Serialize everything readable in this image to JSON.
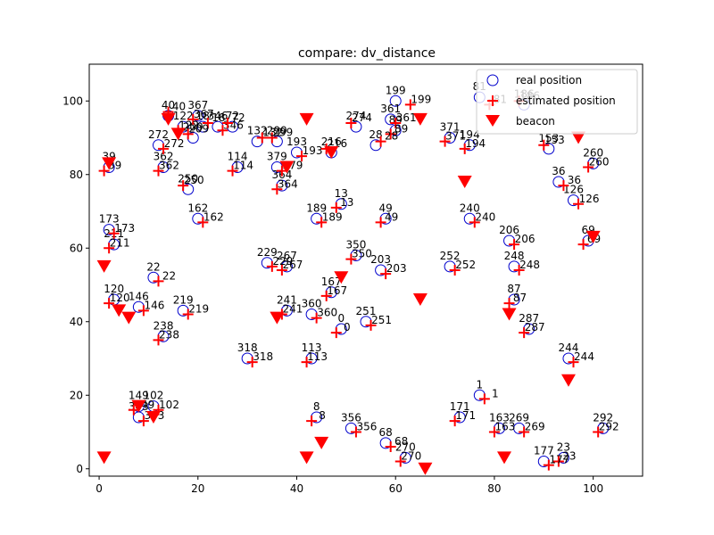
{
  "chart_data": {
    "type": "scatter",
    "title": "compare: dv_distance",
    "xlabel": "",
    "ylabel": "",
    "xlim": [
      -2,
      110
    ],
    "ylim": [
      -2,
      110
    ],
    "x_ticks": [
      0,
      20,
      40,
      60,
      80,
      100
    ],
    "y_ticks": [
      0,
      20,
      40,
      60,
      80,
      100
    ],
    "grid": false,
    "legend_position": "top-right",
    "colors": {
      "real": "#0000cc",
      "estimated": "#ff0000",
      "beacon": "#ff0000"
    },
    "series": [
      {
        "name": "real position",
        "marker": "open-circle",
        "points": [
          {
            "id": "199",
            "x": 60,
            "y": 100
          },
          {
            "id": "367",
            "x": 20,
            "y": 96
          },
          {
            "id": "40",
            "x": 14,
            "y": 96
          },
          {
            "id": "122",
            "x": 17,
            "y": 93
          },
          {
            "id": "18",
            "x": 21,
            "y": 93
          },
          {
            "id": "346",
            "x": 24,
            "y": 93
          },
          {
            "id": "72",
            "x": 27,
            "y": 93
          },
          {
            "id": "299",
            "x": 36,
            "y": 89
          },
          {
            "id": "132",
            "x": 32,
            "y": 89
          },
          {
            "id": "274",
            "x": 52,
            "y": 93
          },
          {
            "id": "361",
            "x": 59,
            "y": 95
          },
          {
            "id": "89",
            "x": 60,
            "y": 92
          },
          {
            "id": "28",
            "x": 56,
            "y": 88
          },
          {
            "id": "194",
            "x": 75,
            "y": 88
          },
          {
            "id": "371",
            "x": 71,
            "y": 90
          },
          {
            "id": "81",
            "x": 77,
            "y": 101
          },
          {
            "id": "186",
            "x": 86,
            "y": 99
          },
          {
            "id": "153",
            "x": 91,
            "y": 87
          },
          {
            "id": "272",
            "x": 12,
            "y": 88
          },
          {
            "id": "209",
            "x": 19,
            "y": 90
          },
          {
            "id": "193",
            "x": 40,
            "y": 86
          },
          {
            "id": "216",
            "x": 47,
            "y": 86
          },
          {
            "id": "36",
            "x": 93,
            "y": 78
          },
          {
            "id": "260",
            "x": 100,
            "y": 83
          },
          {
            "id": "126",
            "x": 96,
            "y": 73
          },
          {
            "id": "173",
            "x": 2,
            "y": 65
          },
          {
            "id": "39",
            "x": 2,
            "y": 82
          },
          {
            "id": "362",
            "x": 13,
            "y": 82
          },
          {
            "id": "250",
            "x": 18,
            "y": 76
          },
          {
            "id": "162",
            "x": 20,
            "y": 68
          },
          {
            "id": "114",
            "x": 28,
            "y": 82
          },
          {
            "id": "379",
            "x": 36,
            "y": 82
          },
          {
            "id": "364",
            "x": 37,
            "y": 77
          },
          {
            "id": "189",
            "x": 44,
            "y": 68
          },
          {
            "id": "13",
            "x": 49,
            "y": 72
          },
          {
            "id": "49",
            "x": 58,
            "y": 68
          },
          {
            "id": "240",
            "x": 75,
            "y": 68
          },
          {
            "id": "206",
            "x": 83,
            "y": 62
          },
          {
            "id": "69",
            "x": 99,
            "y": 62
          },
          {
            "id": "350",
            "x": 52,
            "y": 58
          },
          {
            "id": "203",
            "x": 57,
            "y": 54
          },
          {
            "id": "252",
            "x": 71,
            "y": 55
          },
          {
            "id": "248",
            "x": 84,
            "y": 55
          },
          {
            "id": "211",
            "x": 3,
            "y": 61
          },
          {
            "id": "22",
            "x": 11,
            "y": 52
          },
          {
            "id": "229",
            "x": 34,
            "y": 56
          },
          {
            "id": "267",
            "x": 38,
            "y": 55
          },
          {
            "id": "167",
            "x": 47,
            "y": 48
          },
          {
            "id": "120",
            "x": 3,
            "y": 46
          },
          {
            "id": "146",
            "x": 8,
            "y": 44
          },
          {
            "id": "219",
            "x": 17,
            "y": 43
          },
          {
            "id": "241",
            "x": 38,
            "y": 43
          },
          {
            "id": "360",
            "x": 43,
            "y": 42
          },
          {
            "id": "87",
            "x": 84,
            "y": 46
          },
          {
            "id": "287",
            "x": 87,
            "y": 38
          },
          {
            "id": "238",
            "x": 13,
            "y": 36
          },
          {
            "id": "0",
            "x": 49,
            "y": 38
          },
          {
            "id": "251",
            "x": 54,
            "y": 40
          },
          {
            "id": "318",
            "x": 30,
            "y": 30
          },
          {
            "id": "113",
            "x": 43,
            "y": 30
          },
          {
            "id": "1",
            "x": 77,
            "y": 20
          },
          {
            "id": "244",
            "x": 95,
            "y": 30
          },
          {
            "id": "102",
            "x": 11,
            "y": 17
          },
          {
            "id": "149",
            "x": 8,
            "y": 17
          },
          {
            "id": "373",
            "x": 8,
            "y": 14
          },
          {
            "id": "8",
            "x": 44,
            "y": 14
          },
          {
            "id": "356",
            "x": 51,
            "y": 11
          },
          {
            "id": "68",
            "x": 58,
            "y": 7
          },
          {
            "id": "171",
            "x": 73,
            "y": 14
          },
          {
            "id": "163",
            "x": 81,
            "y": 11
          },
          {
            "id": "269",
            "x": 85,
            "y": 11
          },
          {
            "id": "292",
            "x": 102,
            "y": 11
          },
          {
            "id": "23",
            "x": 94,
            "y": 3
          },
          {
            "id": "177",
            "x": 90,
            "y": 2
          },
          {
            "id": "270",
            "x": 62,
            "y": 3
          }
        ]
      },
      {
        "name": "estimated position",
        "marker": "plus",
        "points": [
          {
            "id": "199",
            "x": 63,
            "y": 99
          },
          {
            "id": "367",
            "x": 19,
            "y": 95
          },
          {
            "id": "40",
            "x": 14,
            "y": 97
          },
          {
            "id": "122",
            "x": 16,
            "y": 92
          },
          {
            "id": "18",
            "x": 22,
            "y": 94
          },
          {
            "id": "346",
            "x": 25,
            "y": 92
          },
          {
            "id": "72",
            "x": 26,
            "y": 94
          },
          {
            "id": "299",
            "x": 35,
            "y": 90
          },
          {
            "id": "132",
            "x": 33,
            "y": 90
          },
          {
            "id": "274",
            "x": 51,
            "y": 94
          },
          {
            "id": "361",
            "x": 60,
            "y": 94
          },
          {
            "id": "89",
            "x": 59,
            "y": 91
          },
          {
            "id": "28",
            "x": 57,
            "y": 89
          },
          {
            "id": "194",
            "x": 74,
            "y": 87
          },
          {
            "id": "371",
            "x": 70,
            "y": 89
          },
          {
            "id": "81",
            "x": 79,
            "y": 99
          },
          {
            "id": "186",
            "x": 85,
            "y": 100
          },
          {
            "id": "153",
            "x": 90,
            "y": 88
          },
          {
            "id": "272",
            "x": 13,
            "y": 87
          },
          {
            "id": "209",
            "x": 18,
            "y": 91
          },
          {
            "id": "193",
            "x": 41,
            "y": 85
          },
          {
            "id": "216",
            "x": 46,
            "y": 87
          },
          {
            "id": "36",
            "x": 94,
            "y": 77
          },
          {
            "id": "260",
            "x": 99,
            "y": 82
          },
          {
            "id": "126",
            "x": 97,
            "y": 72
          },
          {
            "id": "173",
            "x": 3,
            "y": 64
          },
          {
            "id": "39",
            "x": 1,
            "y": 81
          },
          {
            "id": "362",
            "x": 12,
            "y": 81
          },
          {
            "id": "250",
            "x": 17,
            "y": 77
          },
          {
            "id": "162",
            "x": 21,
            "y": 67
          },
          {
            "id": "114",
            "x": 27,
            "y": 81
          },
          {
            "id": "379",
            "x": 37,
            "y": 81
          },
          {
            "id": "364",
            "x": 36,
            "y": 76
          },
          {
            "id": "189",
            "x": 45,
            "y": 67
          },
          {
            "id": "13",
            "x": 48,
            "y": 71
          },
          {
            "id": "49",
            "x": 57,
            "y": 67
          },
          {
            "id": "240",
            "x": 76,
            "y": 67
          },
          {
            "id": "206",
            "x": 84,
            "y": 61
          },
          {
            "id": "69",
            "x": 98,
            "y": 61
          },
          {
            "id": "350",
            "x": 51,
            "y": 57
          },
          {
            "id": "203",
            "x": 58,
            "y": 53
          },
          {
            "id": "252",
            "x": 72,
            "y": 54
          },
          {
            "id": "248",
            "x": 85,
            "y": 54
          },
          {
            "id": "211",
            "x": 2,
            "y": 60
          },
          {
            "id": "22",
            "x": 12,
            "y": 51
          },
          {
            "id": "229",
            "x": 35,
            "y": 55
          },
          {
            "id": "267",
            "x": 37,
            "y": 54
          },
          {
            "id": "167",
            "x": 46,
            "y": 47
          },
          {
            "id": "120",
            "x": 2,
            "y": 45
          },
          {
            "id": "146",
            "x": 9,
            "y": 43
          },
          {
            "id": "219",
            "x": 18,
            "y": 42
          },
          {
            "id": "241",
            "x": 37,
            "y": 42
          },
          {
            "id": "360",
            "x": 44,
            "y": 41
          },
          {
            "id": "87",
            "x": 83,
            "y": 45
          },
          {
            "id": "287",
            "x": 86,
            "y": 37
          },
          {
            "id": "238",
            "x": 12,
            "y": 35
          },
          {
            "id": "0",
            "x": 48,
            "y": 37
          },
          {
            "id": "251",
            "x": 55,
            "y": 39
          },
          {
            "id": "318",
            "x": 31,
            "y": 29
          },
          {
            "id": "113",
            "x": 42,
            "y": 29
          },
          {
            "id": "1",
            "x": 78,
            "y": 19
          },
          {
            "id": "244",
            "x": 96,
            "y": 29
          },
          {
            "id": "102",
            "x": 12,
            "y": 16
          },
          {
            "id": "149",
            "x": 7,
            "y": 16
          },
          {
            "id": "373",
            "x": 9,
            "y": 13
          },
          {
            "id": "8",
            "x": 43,
            "y": 13
          },
          {
            "id": "356",
            "x": 52,
            "y": 10
          },
          {
            "id": "68",
            "x": 59,
            "y": 6
          },
          {
            "id": "171",
            "x": 72,
            "y": 13
          },
          {
            "id": "163",
            "x": 80,
            "y": 10
          },
          {
            "id": "269",
            "x": 86,
            "y": 10
          },
          {
            "id": "292",
            "x": 101,
            "y": 10
          },
          {
            "id": "23",
            "x": 93,
            "y": 2
          },
          {
            "id": "177",
            "x": 91,
            "y": 1
          },
          {
            "id": "270",
            "x": 61,
            "y": 2
          }
        ]
      },
      {
        "name": "beacon",
        "marker": "triangle-down",
        "points": [
          {
            "x": 14,
            "y": 95
          },
          {
            "x": 16,
            "y": 91
          },
          {
            "x": 42,
            "y": 95
          },
          {
            "x": 65,
            "y": 95
          },
          {
            "x": 97,
            "y": 90
          },
          {
            "x": 2,
            "y": 83
          },
          {
            "x": 38,
            "y": 82
          },
          {
            "x": 47,
            "y": 86
          },
          {
            "x": 74,
            "y": 78
          },
          {
            "x": 100,
            "y": 63
          },
          {
            "x": 49,
            "y": 52
          },
          {
            "x": 1,
            "y": 55
          },
          {
            "x": 4,
            "y": 43
          },
          {
            "x": 6,
            "y": 41
          },
          {
            "x": 65,
            "y": 46
          },
          {
            "x": 83,
            "y": 42
          },
          {
            "x": 36,
            "y": 41
          },
          {
            "x": 95,
            "y": 24
          },
          {
            "x": 8,
            "y": 17
          },
          {
            "x": 11,
            "y": 14
          },
          {
            "x": 42,
            "y": 3
          },
          {
            "x": 45,
            "y": 7
          },
          {
            "x": 66,
            "y": 0
          },
          {
            "x": 82,
            "y": 3
          },
          {
            "x": 1,
            "y": 3
          }
        ]
      }
    ]
  }
}
